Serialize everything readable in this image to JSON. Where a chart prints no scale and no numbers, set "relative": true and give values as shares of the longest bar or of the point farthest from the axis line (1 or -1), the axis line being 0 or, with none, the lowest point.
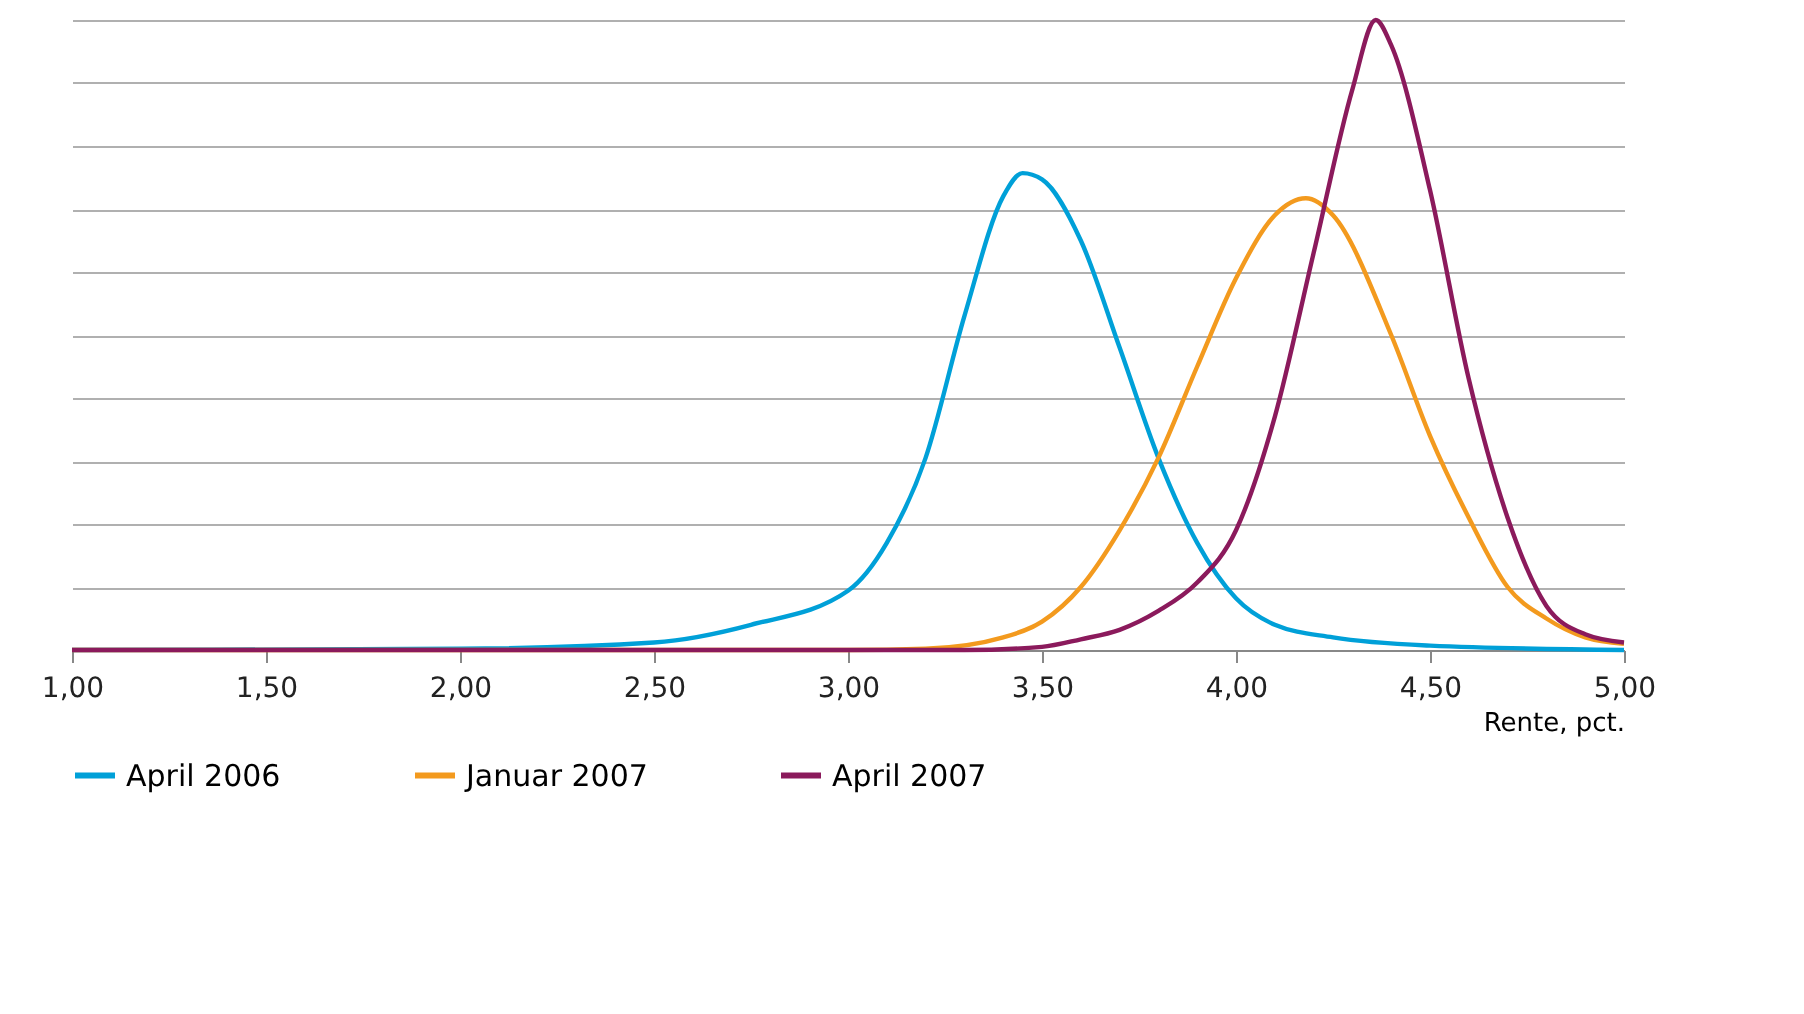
{
  "chart_data": {
    "type": "line",
    "relative": true,
    "xlabel": "Rente, pct.",
    "xlim": [
      1,
      5
    ],
    "xticks": [
      {
        "value": 1,
        "label": "1,00"
      },
      {
        "value": 1.5,
        "label": "1,50"
      },
      {
        "value": 2,
        "label": "2,00"
      },
      {
        "value": 2.5,
        "label": "2,50"
      },
      {
        "value": 3,
        "label": "3,00"
      },
      {
        "value": 3.5,
        "label": "3,50"
      },
      {
        "value": 4,
        "label": "4,00"
      },
      {
        "value": 4.5,
        "label": "4,50"
      },
      {
        "value": 5,
        "label": "5,00"
      }
    ],
    "grid": "y",
    "legend": "bottom left",
    "marker": "none",
    "line_style": "solid",
    "series": [
      {
        "name": "April 2006",
        "color": "#00a0d8",
        "x": [
          1,
          2,
          2.5,
          2.75,
          3,
          3.1,
          3.2,
          3.3,
          3.4,
          3.45,
          3.5,
          3.6,
          3.7,
          3.8,
          3.9,
          4,
          4.1,
          4.25,
          4.5,
          5
        ],
        "values": [
          0,
          0.002,
          0.012,
          0.04,
          0.094,
          0.17,
          0.305,
          0.53,
          0.72,
          0.757,
          0.747,
          0.65,
          0.48,
          0.305,
          0.17,
          0.082,
          0.04,
          0.02,
          0.007,
          0
        ]
      },
      {
        "name": "Januar 2007",
        "color": "#f39a1e",
        "x": [
          1,
          3,
          3.2,
          3.4,
          3.5,
          3.6,
          3.7,
          3.8,
          3.9,
          4,
          4.1,
          4.18,
          4.25,
          4.4,
          4.5,
          4.6,
          4.7,
          4.8,
          4.9,
          5
        ],
        "values": [
          0,
          0,
          0.002,
          0.02,
          0.045,
          0.1,
          0.19,
          0.305,
          0.45,
          0.59,
          0.69,
          0.717,
          0.69,
          0.5,
          0.34,
          0.21,
          0.1,
          0.05,
          0.02,
          0.01
        ]
      },
      {
        "name": "April 2007",
        "color": "#8b1a5c",
        "x": [
          1,
          3.3,
          3.5,
          3.6,
          3.7,
          3.8,
          3.9,
          4,
          4.1,
          4.2,
          4.3,
          4.36,
          4.4,
          4.5,
          4.6,
          4.7,
          4.8,
          4.9,
          5
        ],
        "values": [
          0,
          0,
          0.005,
          0.017,
          0.032,
          0.062,
          0.107,
          0.19,
          0.37,
          0.63,
          0.89,
          1,
          0.96,
          0.73,
          0.43,
          0.21,
          0.07,
          0.025,
          0.012
        ]
      }
    ]
  }
}
